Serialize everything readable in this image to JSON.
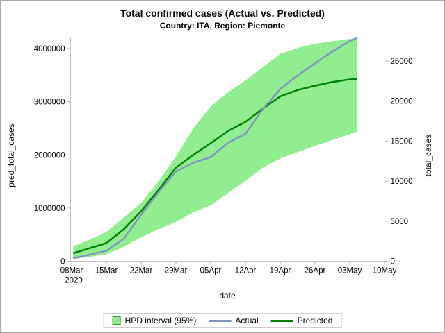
{
  "chart_data": {
    "type": "line",
    "title": "Total confirmed cases (Actual vs. Predicted)",
    "subtitle": "Country: ITA, Region: Piemonte",
    "x_axis": {
      "label": "date",
      "tick_days": [
        0,
        7,
        14,
        21,
        28,
        35,
        42,
        49,
        56,
        63
      ],
      "tick_labels": [
        "08Mar",
        "15Mar",
        "22Mar",
        "29Mar",
        "05Apr",
        "12Apr",
        "19Apr",
        "26Apr",
        "03May",
        "10May"
      ],
      "first_tick_sublabel": "2020",
      "range_days": [
        0,
        63
      ]
    },
    "left_axis": {
      "label": "pred_total_cases",
      "ticks": [
        0,
        1000000,
        2000000,
        3000000,
        4000000
      ],
      "tick_labels": [
        "0",
        "1000000",
        "2000000",
        "3000000",
        "4000000"
      ],
      "range": [
        0,
        4220000
      ]
    },
    "right_axis": {
      "label": "total_cases",
      "ticks": [
        0,
        5000,
        10000,
        15000,
        20000,
        25000
      ],
      "tick_labels": [
        "0",
        "5000",
        "10000",
        "15000",
        "20000",
        "25000"
      ],
      "range": [
        0,
        28000
      ]
    },
    "days": [
      0.3,
      3.5,
      7,
      10.5,
      14,
      17.5,
      21,
      24.5,
      28,
      31.5,
      35,
      38.5,
      42,
      45.5,
      49,
      52.5,
      56,
      57.5
    ],
    "band": {
      "name": "HPD interval (95%)",
      "axis": "left",
      "upper": [
        280000,
        400000,
        550000,
        820000,
        1100000,
        1500000,
        1970000,
        2500000,
        2910000,
        3180000,
        3400000,
        3650000,
        3900000,
        4010000,
        4090000,
        4140000,
        4180000,
        4200000
      ],
      "lower": [
        40000,
        80000,
        130000,
        270000,
        450000,
        600000,
        740000,
        920000,
        1050000,
        1280000,
        1510000,
        1760000,
        1930000,
        2050000,
        2170000,
        2280000,
        2390000,
        2440000
      ]
    },
    "series": [
      {
        "name": "Actual",
        "axis": "right",
        "values": [
          360,
          800,
          1300,
          2800,
          5800,
          8600,
          11200,
          12300,
          13000,
          14800,
          15900,
          19000,
          21500,
          23200,
          24700,
          26200,
          27500,
          27900
        ]
      },
      {
        "name": "Predicted",
        "axis": "left",
        "values": [
          150000,
          240000,
          340000,
          600000,
          940000,
          1340000,
          1760000,
          2000000,
          2220000,
          2450000,
          2620000,
          2870000,
          3100000,
          3220000,
          3300000,
          3370000,
          3420000,
          3430000
        ]
      }
    ],
    "legend_position": "bottom-center",
    "grid": false,
    "colors": {
      "band_fill": "#90ee90",
      "band_swatch_border": "#2f9e2f",
      "actual_line": "#8294c2",
      "predicted_line": "#008000",
      "frame": "#c6c6c6",
      "tick_mark": "#b0b0b0",
      "text": "#000000"
    }
  }
}
